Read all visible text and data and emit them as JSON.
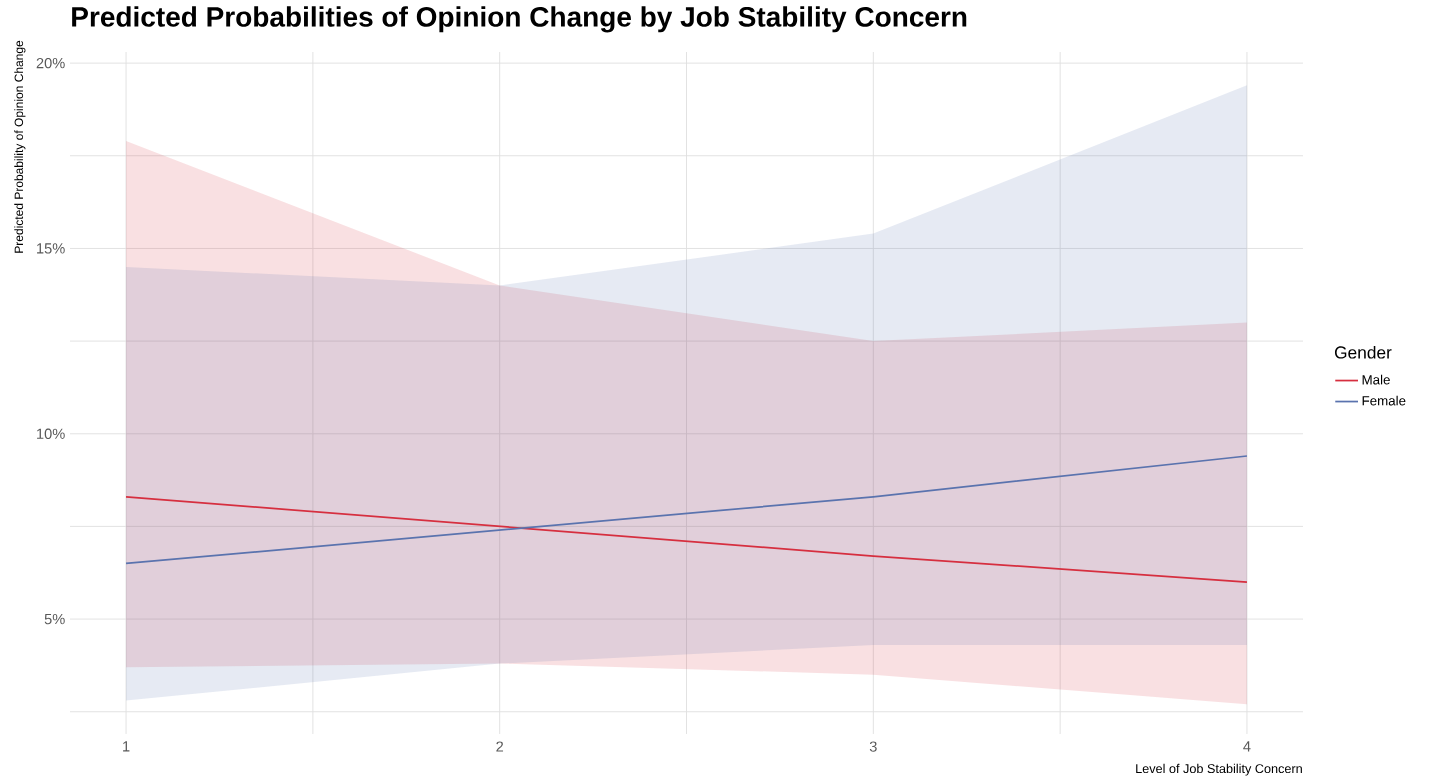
{
  "chart_data": {
    "type": "line",
    "title": "Predicted Probabilities of Opinion Change by Job Stability Concern",
    "xlabel": "Level of Job Stability Concern",
    "ylabel": "Predicted Probability of Opinion Change",
    "legend_title": "Gender",
    "x": [
      1,
      2,
      3,
      4
    ],
    "series": [
      {
        "name": "Male",
        "color": "#d62f3f",
        "values": [
          8.3,
          7.5,
          6.7,
          6.0
        ],
        "lower": [
          3.7,
          3.8,
          3.5,
          2.7
        ],
        "upper": [
          17.9,
          14.0,
          12.5,
          13.0
        ]
      },
      {
        "name": "Female",
        "color": "#5a73ae",
        "values": [
          6.5,
          7.4,
          8.3,
          9.4
        ],
        "lower": [
          2.8,
          3.8,
          4.3,
          4.3
        ],
        "upper": [
          14.5,
          14.0,
          15.4,
          19.4
        ]
      }
    ],
    "xlim": [
      0.85,
      4.15
    ],
    "ylim": [
      1.9,
      20.3
    ],
    "xticks": [
      1,
      {
        "value": 1.5,
        "label": null
      },
      2,
      {
        "value": 2.5,
        "label": null
      },
      3,
      {
        "value": 3.5,
        "label": null
      },
      4
    ],
    "yticks": [
      {
        "value": 2.5,
        "label": null
      },
      {
        "value": 5,
        "label": "5%"
      },
      {
        "value": 7.5,
        "label": null
      },
      {
        "value": 10,
        "label": "10%"
      },
      {
        "value": 12.5,
        "label": null
      },
      {
        "value": 15,
        "label": "15%"
      },
      {
        "value": 17.5,
        "label": null
      },
      {
        "value": 20,
        "label": "20%"
      }
    ],
    "grid": true,
    "legend": "right",
    "line_style": "solid",
    "marker": "none"
  }
}
